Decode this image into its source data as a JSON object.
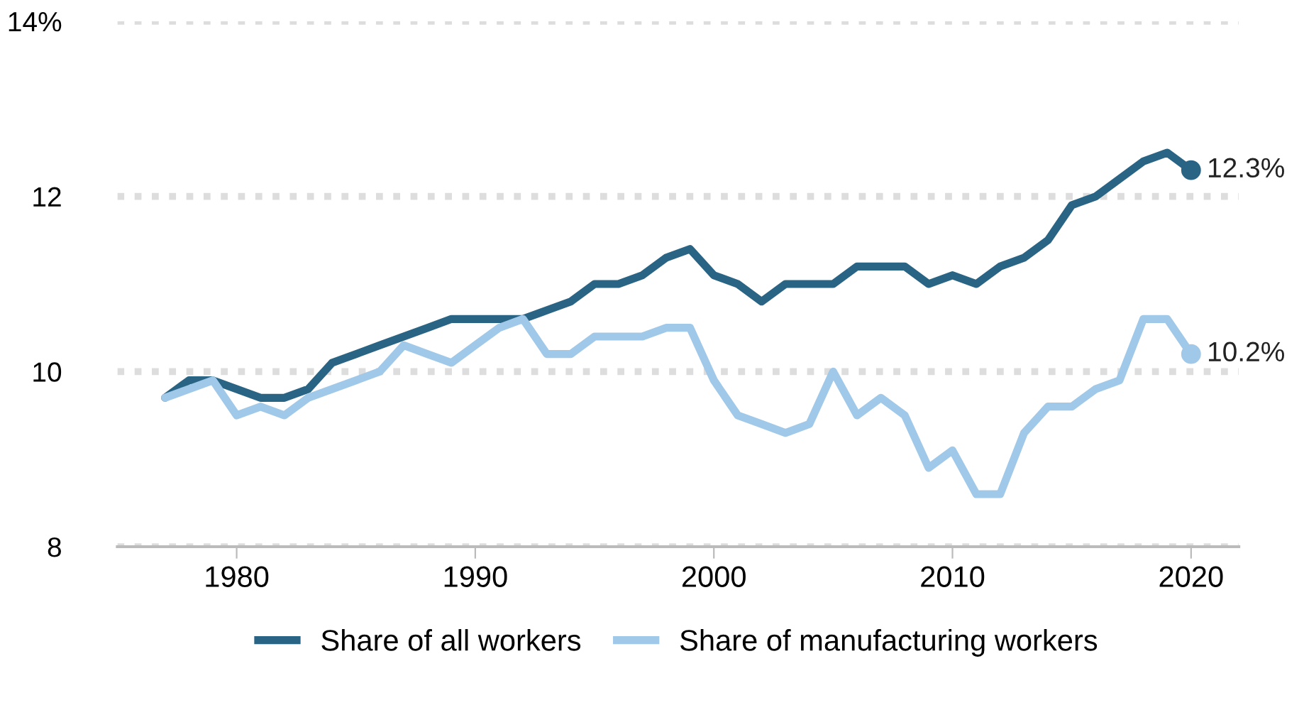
{
  "chart_data": {
    "type": "line",
    "x": [
      1977,
      1978,
      1979,
      1980,
      1981,
      1982,
      1983,
      1984,
      1985,
      1986,
      1987,
      1988,
      1989,
      1990,
      1991,
      1992,
      1993,
      1994,
      1995,
      1996,
      1997,
      1998,
      1999,
      2000,
      2001,
      2002,
      2003,
      2004,
      2005,
      2006,
      2007,
      2008,
      2009,
      2010,
      2011,
      2012,
      2013,
      2014,
      2015,
      2016,
      2017,
      2018,
      2019,
      2020
    ],
    "series": [
      {
        "name": "Share of all workers",
        "color": "#2a6485",
        "values": [
          9.7,
          9.9,
          9.9,
          9.8,
          9.7,
          9.7,
          9.8,
          10.1,
          10.2,
          10.3,
          10.4,
          10.5,
          10.6,
          10.6,
          10.6,
          10.6,
          10.7,
          10.8,
          11.0,
          11.0,
          11.1,
          11.3,
          11.4,
          11.1,
          11.0,
          10.8,
          11.0,
          11.0,
          11.0,
          11.2,
          11.2,
          11.2,
          11.0,
          11.1,
          11.0,
          11.2,
          11.3,
          11.5,
          11.9,
          12.0,
          12.2,
          12.4,
          12.5,
          12.3
        ]
      },
      {
        "name": "Share of manufacturing workers",
        "color": "#a0c8e8",
        "values": [
          9.7,
          9.8,
          9.9,
          9.5,
          9.6,
          9.5,
          9.7,
          9.8,
          9.9,
          10.0,
          10.3,
          10.2,
          10.1,
          10.3,
          10.5,
          10.6,
          10.2,
          10.2,
          10.4,
          10.4,
          10.4,
          10.5,
          10.5,
          9.9,
          9.5,
          9.4,
          9.3,
          9.4,
          10.0,
          9.5,
          9.7,
          9.5,
          8.9,
          9.1,
          8.6,
          8.6,
          9.3,
          9.6,
          9.6,
          9.8,
          9.9,
          10.6,
          10.6,
          10.2
        ]
      }
    ],
    "annotations": [
      {
        "text": "12.3%",
        "x": 2020,
        "y": 12.3
      },
      {
        "text": "10.2%",
        "x": 2020,
        "y": 10.2
      }
    ],
    "xlim": [
      1975,
      2022
    ],
    "xticks": [
      1980,
      1990,
      2000,
      2010,
      2020
    ],
    "ylim": [
      8,
      14
    ],
    "yticks": [
      {
        "value": 8,
        "label": "8"
      },
      {
        "value": 10,
        "label": "10"
      },
      {
        "value": 12,
        "label": "12"
      },
      {
        "value": 14,
        "label": "14%"
      }
    ],
    "grid": "y",
    "legend": "bottom",
    "line_style": "solid",
    "marker": "none"
  }
}
